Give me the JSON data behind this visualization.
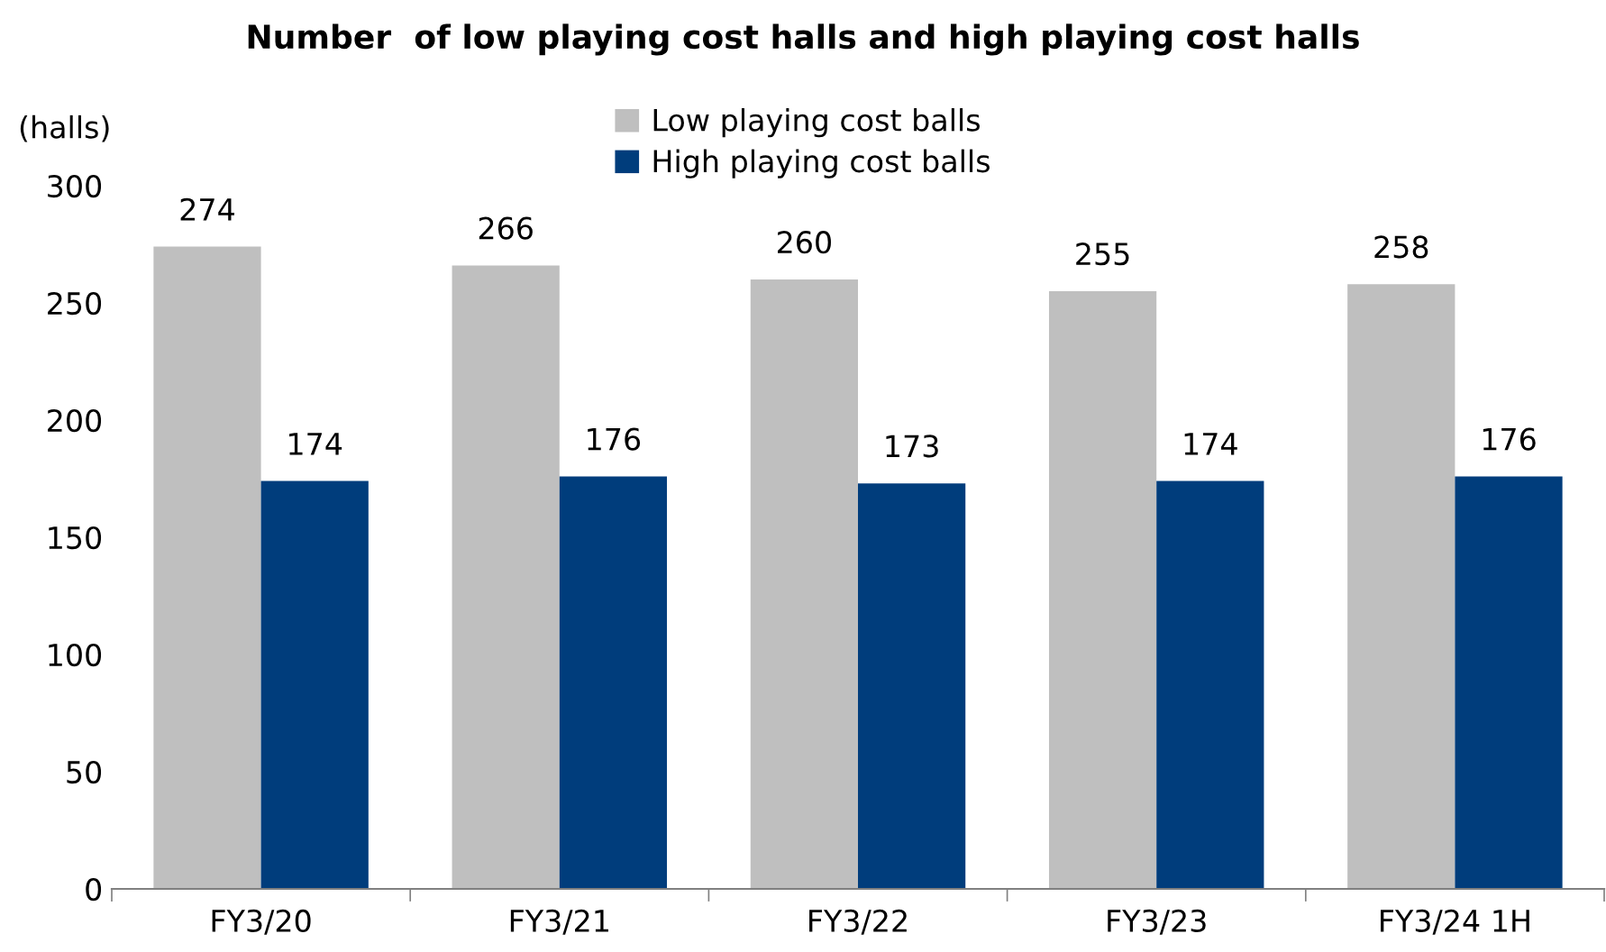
{
  "chart_data": {
    "type": "bar",
    "title": "Number  of low playing cost halls and high playing cost halls",
    "ylabel": "(halls)",
    "categories": [
      "FY3/20",
      "FY3/21",
      "FY3/22",
      "FY3/23",
      "FY3/24 1H"
    ],
    "series": [
      {
        "name": "Low playing cost balls",
        "color": "#bfbfbf",
        "values": [
          274,
          266,
          260,
          255,
          258
        ]
      },
      {
        "name": "High playing cost balls",
        "color": "#003d7c",
        "values": [
          174,
          176,
          173,
          174,
          176
        ]
      }
    ],
    "ylim": [
      0,
      300
    ],
    "yticks": [
      0,
      50,
      100,
      150,
      200,
      250,
      300
    ],
    "data_labels": true,
    "grid": false,
    "legend": "top"
  }
}
